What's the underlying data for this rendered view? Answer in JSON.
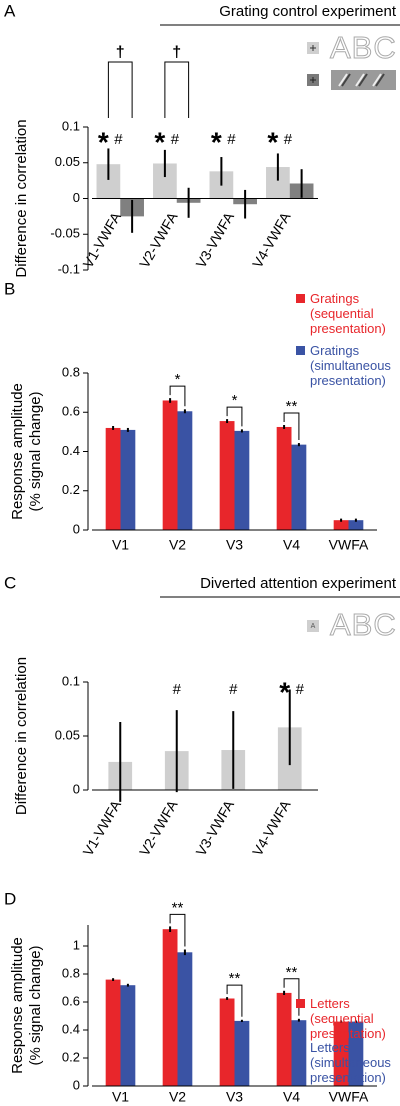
{
  "chart_data": [
    {
      "type": "bar",
      "panel_label": "A",
      "header": "Grating control experiment",
      "stimulus_text": "ABC",
      "ylabel": [
        "Difference in correlation"
      ],
      "categories": [
        "V1-VWFA",
        "V2-VWFA",
        "V3-VWFA",
        "V4-VWFA"
      ],
      "series": [
        {
          "color": "#cfcfcf",
          "values": [
            0.048,
            0.049,
            0.038,
            0.044
          ],
          "errors": [
            0.022,
            0.019,
            0.02,
            0.019
          ]
        },
        {
          "color": "#808080",
          "values": [
            -0.025,
            -0.006,
            -0.008,
            0.021
          ],
          "errors": [
            0.023,
            0.021,
            0.02,
            0.02
          ]
        }
      ],
      "star_labels": [
        "*",
        "*",
        "*",
        "*"
      ],
      "hash_labels": [
        "#",
        "#",
        "#",
        "#"
      ],
      "brackets": [
        {
          "category": "V1-VWFA",
          "text": "†"
        },
        {
          "category": "V2-VWFA",
          "text": "†"
        }
      ],
      "ylim": [
        -0.1,
        0.1
      ],
      "yticks": [
        -0.1,
        -0.05,
        0,
        0.05,
        0.1
      ]
    },
    {
      "type": "bar",
      "panel_label": "B",
      "ylabel": [
        "Response amplitude",
        "(% signal change)"
      ],
      "categories": [
        "V1",
        "V2",
        "V3",
        "V4",
        "VWFA"
      ],
      "series": [
        {
          "name": "Gratings (sequential presentation)",
          "color": "#e8262b",
          "values": [
            0.52,
            0.66,
            0.555,
            0.525,
            0.05
          ],
          "errors": [
            0.01,
            0.012,
            0.01,
            0.01,
            0.008
          ]
        },
        {
          "name": "Gratings (simultaneous presentation)",
          "color": "#3a53a4",
          "values": [
            0.51,
            0.605,
            0.505,
            0.435,
            0.05
          ],
          "errors": [
            0.01,
            0.01,
            0.008,
            0.008,
            0.008
          ]
        }
      ],
      "brackets": [
        {
          "category": "V2",
          "text": "*"
        },
        {
          "category": "V3",
          "text": "*"
        },
        {
          "category": "V4",
          "text": "**"
        }
      ],
      "ylim": [
        0,
        0.8
      ],
      "yticks": [
        0,
        0.2,
        0.4,
        0.6,
        0.8
      ]
    },
    {
      "type": "bar",
      "panel_label": "C",
      "header": "Diverted attention experiment",
      "stimulus_text": "ABC",
      "fixation_text": "A",
      "ylabel": [
        "Difference in correlation"
      ],
      "categories": [
        "V1-VWFA",
        "V2-VWFA",
        "V3-VWFA",
        "V4-VWFA"
      ],
      "series": [
        {
          "color": "#cfcfcf",
          "values": [
            0.026,
            0.036,
            0.037,
            0.058
          ],
          "errors": [
            0.037,
            0.038,
            0.036,
            0.035
          ]
        }
      ],
      "star_labels": [
        null,
        null,
        null,
        "*"
      ],
      "hash_labels": [
        null,
        "#",
        "#",
        "#"
      ],
      "ylim": [
        0,
        0.1
      ],
      "yticks": [
        0,
        0.05,
        0.1
      ]
    },
    {
      "type": "bar",
      "panel_label": "D",
      "ylabel": [
        "Response amplitude",
        "(% signal change)"
      ],
      "categories": [
        "V1",
        "V2",
        "V3",
        "V4",
        "VWFA"
      ],
      "series": [
        {
          "name": "Letters (sequential presentation)",
          "color": "#e8262b",
          "values": [
            0.76,
            1.12,
            0.625,
            0.665,
            0.46
          ],
          "errors": [
            0.01,
            0.02,
            0.01,
            0.015,
            0.008
          ]
        },
        {
          "name": "Letters (simultaneous presentation)",
          "color": "#3a53a4",
          "values": [
            0.72,
            0.955,
            0.465,
            0.47,
            0.46
          ],
          "errors": [
            0.01,
            0.02,
            0.008,
            0.01,
            0.008
          ]
        }
      ],
      "brackets": [
        {
          "category": "V2",
          "text": "**"
        },
        {
          "category": "V3",
          "text": "**"
        },
        {
          "category": "V4",
          "text": "**"
        }
      ],
      "ylim": [
        0,
        1.15
      ],
      "yticks": [
        0,
        0.2,
        0.4,
        0.6,
        0.8,
        1
      ]
    }
  ]
}
